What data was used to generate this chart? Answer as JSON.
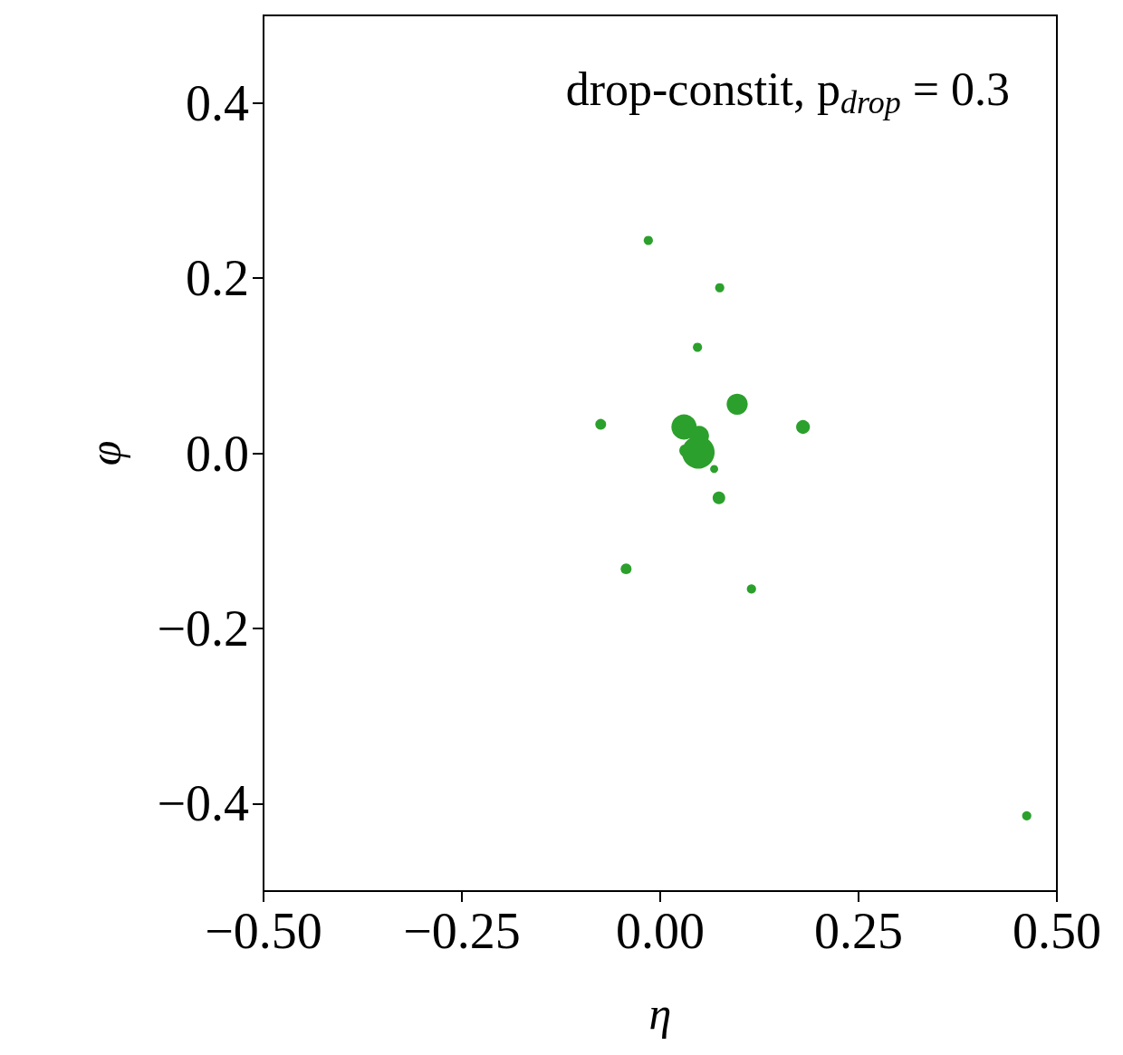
{
  "chart_data": {
    "type": "bubble",
    "title": "drop-constit, p$_{drop}$ = 0.3",
    "xlabel": "η",
    "ylabel": "φ",
    "x": [
      -0.015,
      0.075,
      0.047,
      0.097,
      -0.075,
      0.03,
      0.049,
      0.032,
      0.048,
      0.068,
      0.18,
      0.074,
      -0.043,
      0.115,
      0.462
    ],
    "values": [
      0.243,
      0.189,
      0.121,
      0.056,
      0.033,
      0.03,
      0.02,
      0.003,
      0.001,
      -0.018,
      0.03,
      -0.051,
      -0.132,
      -0.155,
      -0.414
    ],
    "sizes": [
      0.08,
      0.08,
      0.08,
      0.42,
      0.11,
      0.6,
      0.37,
      0.15,
      1,
      0.06,
      0.18,
      0.15,
      0.11,
      0.08,
      0.08
    ],
    "color": "#2ca02c",
    "marker": "circle",
    "grid": false,
    "xlim": [
      -0.5,
      0.5
    ],
    "ylim": [
      -0.5,
      0.5
    ],
    "xticks": [
      {
        "value": -0.5,
        "label": "−0.50"
      },
      {
        "value": -0.25,
        "label": "−0.25"
      },
      {
        "value": 0,
        "label": "0.00"
      },
      {
        "value": 0.25,
        "label": "0.25"
      },
      {
        "value": 0.5,
        "label": "0.50"
      }
    ],
    "yticks": [
      {
        "value": -0.4,
        "label": "−0.4"
      },
      {
        "value": -0.2,
        "label": "−0.2"
      },
      {
        "value": 0,
        "label": "0.0"
      },
      {
        "value": 0.2,
        "label": "0.2"
      },
      {
        "value": 0.4,
        "label": "0.4"
      }
    ]
  }
}
